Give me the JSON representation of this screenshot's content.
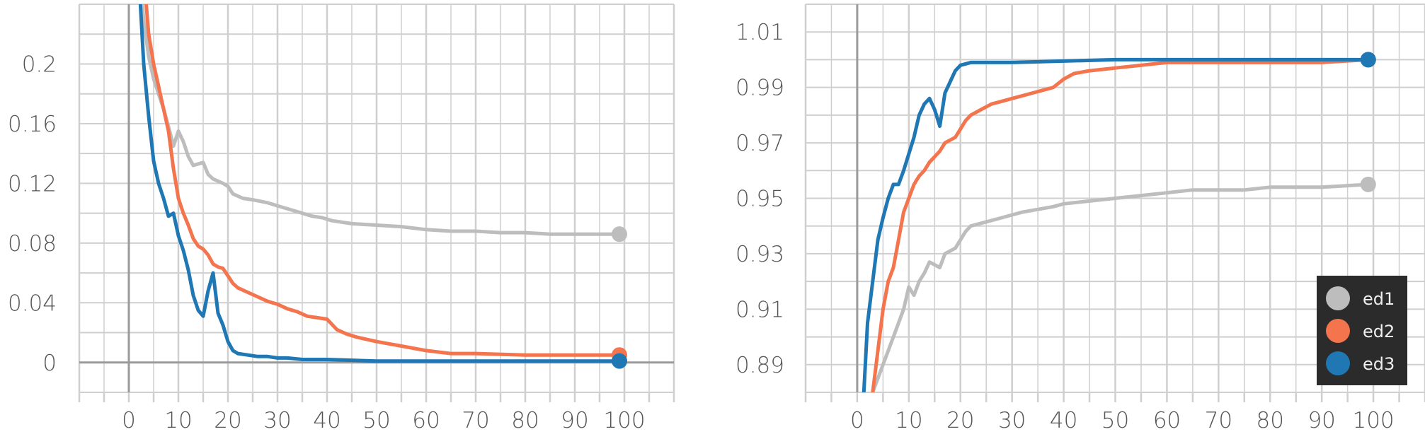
{
  "legend": {
    "entries": [
      {
        "label": "ed1",
        "color": "#bdbdbd"
      },
      {
        "label": "ed2",
        "color": "#f4744e"
      },
      {
        "label": "ed3",
        "color": "#1f77b4"
      }
    ],
    "background": "#2b2b2b",
    "placement": "bottom-right"
  },
  "chart_data": [
    {
      "type": "line",
      "title": "",
      "xlabel": "",
      "ylabel": "",
      "xlim": [
        -10,
        110
      ],
      "ylim": [
        -0.02,
        0.24
      ],
      "x_ticks": [
        0,
        10,
        20,
        30,
        40,
        50,
        60,
        70,
        80,
        90,
        100
      ],
      "x_tick_labels": [
        "0",
        "10",
        "20",
        "30",
        "40",
        "50",
        "60",
        "70",
        "80",
        "90",
        "100"
      ],
      "y_ticks": [
        0,
        0.04,
        0.08,
        0.12,
        0.16,
        0.2
      ],
      "y_tick_labels": [
        "0",
        "0.04",
        "0.08",
        "0.12",
        "0.16",
        "0.2"
      ],
      "grid": true,
      "series": [
        {
          "name": "ed1",
          "color": "#bdbdbd",
          "points": [
            [
              2,
              0.26
            ],
            [
              3,
              0.23
            ],
            [
              4,
              0.205
            ],
            [
              5,
              0.19
            ],
            [
              6,
              0.18
            ],
            [
              7,
              0.17
            ],
            [
              8,
              0.158
            ],
            [
              9,
              0.145
            ],
            [
              10,
              0.155
            ],
            [
              11,
              0.148
            ],
            [
              12,
              0.138
            ],
            [
              13,
              0.132
            ],
            [
              15,
              0.134
            ],
            [
              16,
              0.126
            ],
            [
              17,
              0.123
            ],
            [
              19,
              0.12
            ],
            [
              20,
              0.118
            ],
            [
              21,
              0.113
            ],
            [
              23,
              0.11
            ],
            [
              25,
              0.109
            ],
            [
              28,
              0.107
            ],
            [
              30,
              0.105
            ],
            [
              33,
              0.102
            ],
            [
              35,
              0.1
            ],
            [
              37,
              0.098
            ],
            [
              39,
              0.097
            ],
            [
              41,
              0.095
            ],
            [
              45,
              0.093
            ],
            [
              50,
              0.092
            ],
            [
              55,
              0.091
            ],
            [
              60,
              0.089
            ],
            [
              65,
              0.088
            ],
            [
              70,
              0.088
            ],
            [
              75,
              0.087
            ],
            [
              80,
              0.087
            ],
            [
              85,
              0.086
            ],
            [
              90,
              0.086
            ],
            [
              99,
              0.086
            ]
          ]
        },
        {
          "name": "ed2",
          "color": "#f4744e",
          "points": [
            [
              3,
              0.26
            ],
            [
              4,
              0.22
            ],
            [
              5,
              0.2
            ],
            [
              6,
              0.185
            ],
            [
              7,
              0.17
            ],
            [
              8,
              0.155
            ],
            [
              9,
              0.13
            ],
            [
              10,
              0.11
            ],
            [
              11,
              0.1
            ],
            [
              12,
              0.092
            ],
            [
              13,
              0.083
            ],
            [
              14,
              0.078
            ],
            [
              15,
              0.076
            ],
            [
              16,
              0.072
            ],
            [
              17,
              0.066
            ],
            [
              18,
              0.064
            ],
            [
              19,
              0.063
            ],
            [
              20,
              0.058
            ],
            [
              21,
              0.053
            ],
            [
              22,
              0.05
            ],
            [
              24,
              0.047
            ],
            [
              26,
              0.044
            ],
            [
              28,
              0.041
            ],
            [
              30,
              0.039
            ],
            [
              32,
              0.036
            ],
            [
              34,
              0.034
            ],
            [
              36,
              0.031
            ],
            [
              38,
              0.03
            ],
            [
              40,
              0.029
            ],
            [
              42,
              0.022
            ],
            [
              44,
              0.019
            ],
            [
              46,
              0.017
            ],
            [
              50,
              0.014
            ],
            [
              55,
              0.011
            ],
            [
              60,
              0.008
            ],
            [
              65,
              0.006
            ],
            [
              70,
              0.006
            ],
            [
              80,
              0.005
            ],
            [
              90,
              0.005
            ],
            [
              99,
              0.005
            ]
          ]
        },
        {
          "name": "ed3",
          "color": "#1f77b4",
          "points": [
            [
              2,
              0.26
            ],
            [
              3,
              0.2
            ],
            [
              4,
              0.165
            ],
            [
              5,
              0.135
            ],
            [
              6,
              0.12
            ],
            [
              7,
              0.11
            ],
            [
              8,
              0.098
            ],
            [
              9,
              0.1
            ],
            [
              10,
              0.085
            ],
            [
              11,
              0.075
            ],
            [
              12,
              0.062
            ],
            [
              13,
              0.045
            ],
            [
              14,
              0.035
            ],
            [
              15,
              0.031
            ],
            [
              16,
              0.048
            ],
            [
              17,
              0.06
            ],
            [
              18,
              0.033
            ],
            [
              19,
              0.025
            ],
            [
              20,
              0.014
            ],
            [
              21,
              0.008
            ],
            [
              22,
              0.006
            ],
            [
              24,
              0.005
            ],
            [
              26,
              0.004
            ],
            [
              28,
              0.004
            ],
            [
              30,
              0.003
            ],
            [
              32,
              0.003
            ],
            [
              35,
              0.002
            ],
            [
              40,
              0.002
            ],
            [
              50,
              0.001
            ],
            [
              60,
              0.001
            ],
            [
              70,
              0.001
            ],
            [
              80,
              0.001
            ],
            [
              90,
              0.001
            ],
            [
              99,
              0.001
            ]
          ]
        }
      ]
    },
    {
      "type": "line",
      "title": "",
      "xlabel": "",
      "ylabel": "",
      "xlim": [
        -10,
        110
      ],
      "ylim": [
        0.88,
        1.02
      ],
      "x_ticks": [
        0,
        10,
        20,
        30,
        40,
        50,
        60,
        70,
        80,
        90,
        100
      ],
      "x_tick_labels": [
        "0",
        "10",
        "20",
        "30",
        "40",
        "50",
        "60",
        "70",
        "80",
        "90",
        "100"
      ],
      "y_ticks": [
        0.89,
        0.91,
        0.93,
        0.95,
        0.97,
        0.99,
        1.01
      ],
      "y_tick_labels": [
        "0.89",
        "0.91",
        "0.93",
        "0.95",
        "0.97",
        "0.99",
        "1.01"
      ],
      "grid": true,
      "series": [
        {
          "name": "ed1",
          "color": "#bdbdbd",
          "points": [
            [
              2,
              0.87
            ],
            [
              3,
              0.88
            ],
            [
              4,
              0.885
            ],
            [
              5,
              0.89
            ],
            [
              6,
              0.895
            ],
            [
              7,
              0.9
            ],
            [
              8,
              0.905
            ],
            [
              9,
              0.91
            ],
            [
              10,
              0.918
            ],
            [
              11,
              0.915
            ],
            [
              12,
              0.92
            ],
            [
              13,
              0.923
            ],
            [
              14,
              0.927
            ],
            [
              15,
              0.926
            ],
            [
              16,
              0.925
            ],
            [
              17,
              0.93
            ],
            [
              18,
              0.931
            ],
            [
              19,
              0.932
            ],
            [
              20,
              0.935
            ],
            [
              21,
              0.938
            ],
            [
              22,
              0.94
            ],
            [
              24,
              0.941
            ],
            [
              26,
              0.942
            ],
            [
              28,
              0.943
            ],
            [
              30,
              0.944
            ],
            [
              32,
              0.945
            ],
            [
              35,
              0.946
            ],
            [
              38,
              0.947
            ],
            [
              40,
              0.948
            ],
            [
              45,
              0.949
            ],
            [
              50,
              0.95
            ],
            [
              55,
              0.951
            ],
            [
              60,
              0.952
            ],
            [
              65,
              0.953
            ],
            [
              70,
              0.953
            ],
            [
              75,
              0.953
            ],
            [
              80,
              0.954
            ],
            [
              90,
              0.954
            ],
            [
              99,
              0.955
            ]
          ]
        },
        {
          "name": "ed2",
          "color": "#f4744e",
          "points": [
            [
              2,
              0.87
            ],
            [
              3,
              0.88
            ],
            [
              4,
              0.895
            ],
            [
              5,
              0.91
            ],
            [
              6,
              0.92
            ],
            [
              7,
              0.925
            ],
            [
              8,
              0.935
            ],
            [
              9,
              0.945
            ],
            [
              10,
              0.95
            ],
            [
              11,
              0.955
            ],
            [
              12,
              0.958
            ],
            [
              13,
              0.96
            ],
            [
              14,
              0.963
            ],
            [
              15,
              0.965
            ],
            [
              16,
              0.967
            ],
            [
              17,
              0.97
            ],
            [
              18,
              0.971
            ],
            [
              19,
              0.972
            ],
            [
              20,
              0.975
            ],
            [
              21,
              0.978
            ],
            [
              22,
              0.98
            ],
            [
              24,
              0.982
            ],
            [
              26,
              0.984
            ],
            [
              28,
              0.985
            ],
            [
              30,
              0.986
            ],
            [
              32,
              0.987
            ],
            [
              34,
              0.988
            ],
            [
              36,
              0.989
            ],
            [
              38,
              0.99
            ],
            [
              40,
              0.993
            ],
            [
              42,
              0.995
            ],
            [
              45,
              0.996
            ],
            [
              50,
              0.997
            ],
            [
              55,
              0.998
            ],
            [
              60,
              0.999
            ],
            [
              70,
              0.999
            ],
            [
              80,
              0.999
            ],
            [
              90,
              0.999
            ],
            [
              99,
              1.0
            ]
          ]
        },
        {
          "name": "ed3",
          "color": "#1f77b4",
          "points": [
            [
              1,
              0.87
            ],
            [
              2,
              0.905
            ],
            [
              3,
              0.92
            ],
            [
              4,
              0.935
            ],
            [
              5,
              0.943
            ],
            [
              6,
              0.95
            ],
            [
              7,
              0.955
            ],
            [
              8,
              0.955
            ],
            [
              9,
              0.96
            ],
            [
              10,
              0.966
            ],
            [
              11,
              0.972
            ],
            [
              12,
              0.98
            ],
            [
              13,
              0.984
            ],
            [
              14,
              0.986
            ],
            [
              15,
              0.982
            ],
            [
              16,
              0.976
            ],
            [
              17,
              0.988
            ],
            [
              18,
              0.992
            ],
            [
              19,
              0.996
            ],
            [
              20,
              0.998
            ],
            [
              22,
              0.999
            ],
            [
              25,
              0.999
            ],
            [
              30,
              0.999
            ],
            [
              40,
              0.9995
            ],
            [
              50,
              1.0
            ],
            [
              60,
              1.0
            ],
            [
              70,
              1.0
            ],
            [
              80,
              1.0
            ],
            [
              90,
              1.0
            ],
            [
              99,
              1.0
            ]
          ]
        }
      ]
    }
  ]
}
